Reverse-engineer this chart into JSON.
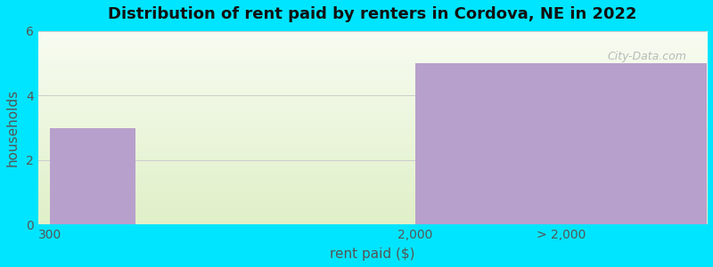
{
  "title": "Distribution of rent paid by renters in Cordova, NE in 2022",
  "categories": [
    "300",
    "2,000",
    "> 2,000"
  ],
  "bar_color": "#b8a0cc",
  "bg_color": "#00e5ff",
  "xlabel": "rent paid ($)",
  "ylabel": "households",
  "ylim": [
    0,
    6
  ],
  "yticks": [
    0,
    2,
    4,
    6
  ],
  "grid_color": "#cccccc",
  "watermark": "City-Data.com",
  "bar1_height": 3,
  "bar2_height": 5,
  "tick_300": 0.0,
  "tick_2000": 1.0,
  "tick_gt2000": 2.0,
  "xlim_left": -0.05,
  "xlim_right": 2.7,
  "gradient_top_color": "#f8fcf2",
  "gradient_bottom_color": "#e0f0c8"
}
